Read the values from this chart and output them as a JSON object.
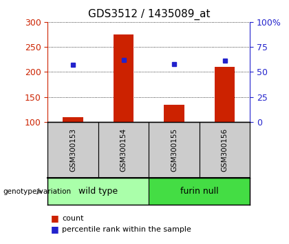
{
  "title": "GDS3512 / 1435089_at",
  "samples": [
    "GSM300153",
    "GSM300154",
    "GSM300155",
    "GSM300156"
  ],
  "count_values": [
    110,
    275,
    135,
    210
  ],
  "percentile_values": [
    57,
    62,
    58,
    61
  ],
  "count_base": 100,
  "left_ylim": [
    100,
    300
  ],
  "right_ylim": [
    0,
    100
  ],
  "left_yticks": [
    100,
    150,
    200,
    250,
    300
  ],
  "right_yticks": [
    0,
    25,
    50,
    75,
    100
  ],
  "right_yticklabels": [
    "0",
    "25",
    "50",
    "75",
    "100%"
  ],
  "bar_color": "#cc2200",
  "dot_color": "#2222cc",
  "groups": [
    {
      "label": "wild type",
      "samples": [
        0,
        1
      ],
      "color": "#aaffaa"
    },
    {
      "label": "furin null",
      "samples": [
        2,
        3
      ],
      "color": "#44dd44"
    }
  ],
  "group_label": "genotype/variation",
  "legend_count": "count",
  "legend_pct": "percentile rank within the sample",
  "left_tick_color": "#cc2200",
  "right_tick_color": "#2222cc",
  "grid_color": "#000000",
  "sample_box_color": "#cccccc",
  "title_fontsize": 11,
  "legend_fontsize": 8
}
